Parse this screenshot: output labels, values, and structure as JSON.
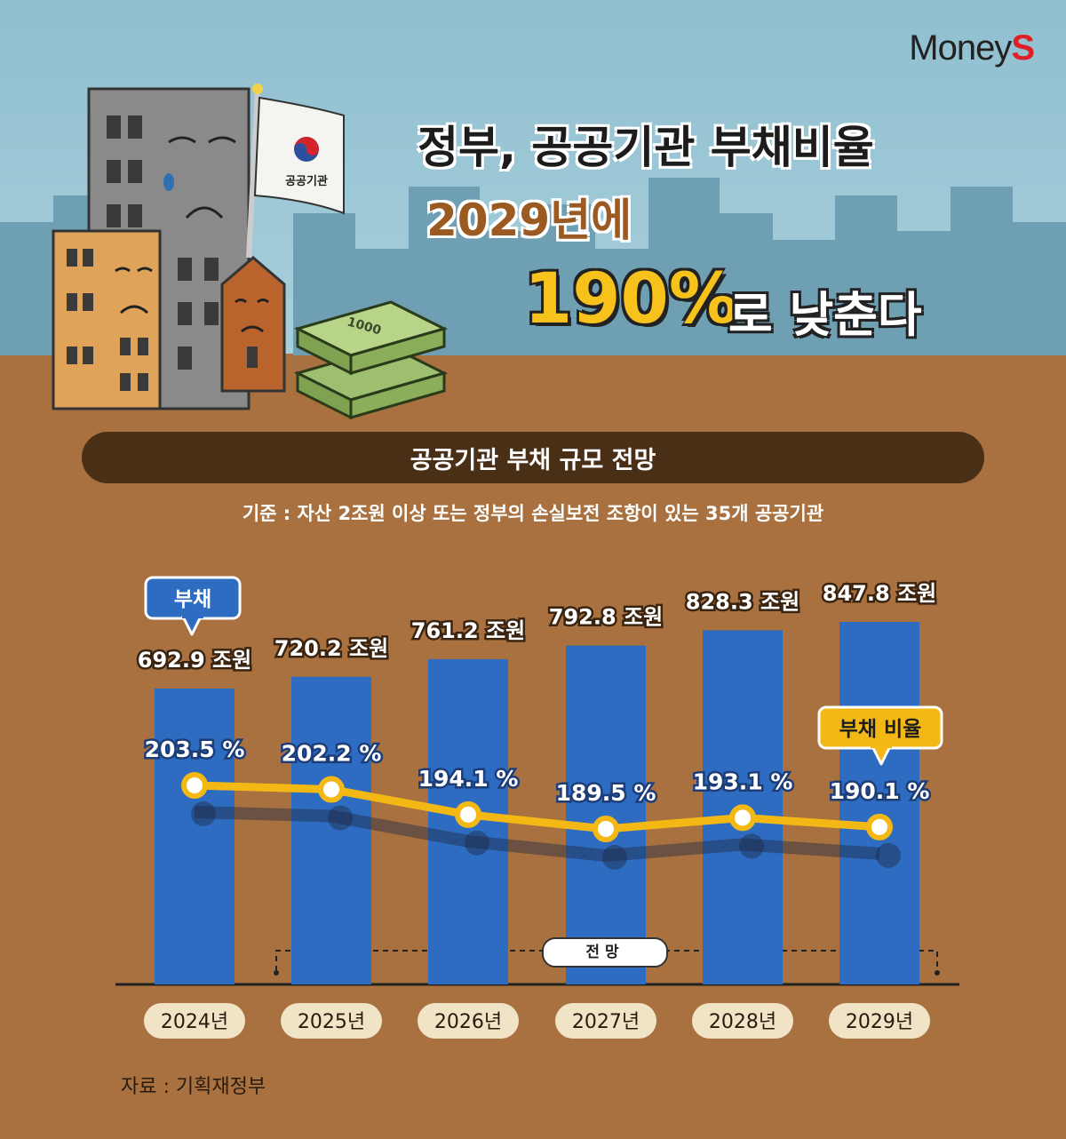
{
  "brand": {
    "name_main": "Money",
    "name_accent": "S"
  },
  "headline": {
    "line1": "정부, 공공기관 부채비율",
    "line2": "2029년에",
    "line3_big": "190%",
    "line3_rest": "로 낮춘다"
  },
  "illustration": {
    "flag_text": "공공기관",
    "bill_text": "1000"
  },
  "section_title": "공공기관 부채 규모 전망",
  "basis_note": "기준 : 자산 2조원 이상 또는 정부의 손실보전 조항이 있는 35개 공공기관",
  "source_note": "자료 : 기획재정부",
  "forecast_label": "전망",
  "colors": {
    "bar": "#2d6cc0",
    "line": "#f4b815",
    "ground": "#a8713f",
    "sky": "#9dc6d4",
    "dark_band": "#4a2f17"
  },
  "chart_data": {
    "type": "bar",
    "categories": [
      "2024년",
      "2025년",
      "2026년",
      "2027년",
      "2028년",
      "2029년"
    ],
    "series": [
      {
        "name": "부채",
        "values": [
          692.9,
          720.2,
          761.2,
          792.8,
          828.3,
          847.8
        ],
        "unit": "조원",
        "value_labels": [
          "692.9",
          "720.2",
          "761.2",
          "792.8",
          "828.3",
          "847.8"
        ]
      },
      {
        "name": "부채 비율",
        "values": [
          203.5,
          202.2,
          194.1,
          189.5,
          193.1,
          190.1
        ],
        "unit": "%",
        "value_labels": [
          "203.5 %",
          "202.2 %",
          "194.1 %",
          "189.5 %",
          "193.1 %",
          "190.1 %"
        ]
      }
    ],
    "forecast_range": [
      "2025년",
      "2029년"
    ],
    "legend": "callouts",
    "grid": false
  }
}
